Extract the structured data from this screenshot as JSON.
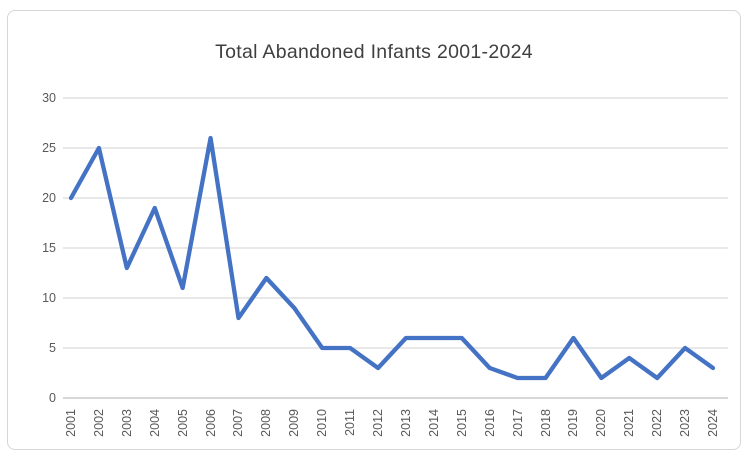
{
  "page": {
    "background": "#ffffff"
  },
  "chart": {
    "title": "Total Abandoned Infants 2001-2024",
    "colors": {
      "line": "#4472C4",
      "gridline": "#D9D9D9",
      "axis_line": "#BFBFBF",
      "title_text": "#3F3F3F",
      "tick_text": "#595959",
      "card_border": "#D6D6D6",
      "background": "#FFFFFF"
    }
  },
  "chart_data": {
    "type": "line",
    "title": "Total Abandoned Infants 2001-2024",
    "categories": [
      "2001",
      "2002",
      "2003",
      "2004",
      "2005",
      "2006",
      "2007",
      "2008",
      "2009",
      "2010",
      "2011",
      "2012",
      "2013",
      "2014",
      "2015",
      "2016",
      "2017",
      "2018",
      "2019",
      "2020",
      "2021",
      "2022",
      "2023",
      "2024"
    ],
    "values": [
      20,
      25,
      13,
      19,
      11,
      26,
      8,
      12,
      9,
      5,
      5,
      3,
      6,
      6,
      6,
      3,
      2,
      2,
      6,
      2,
      4,
      2,
      5,
      3
    ],
    "series_name": "Total Abandoned Infants",
    "xlabel": "",
    "ylabel": "",
    "ylim": [
      0,
      30
    ],
    "yticks": [
      0,
      5,
      10,
      15,
      20,
      25,
      30
    ],
    "x_tick_rotation": 90,
    "grid": true,
    "legend": false,
    "line_color": "#4472C4"
  }
}
